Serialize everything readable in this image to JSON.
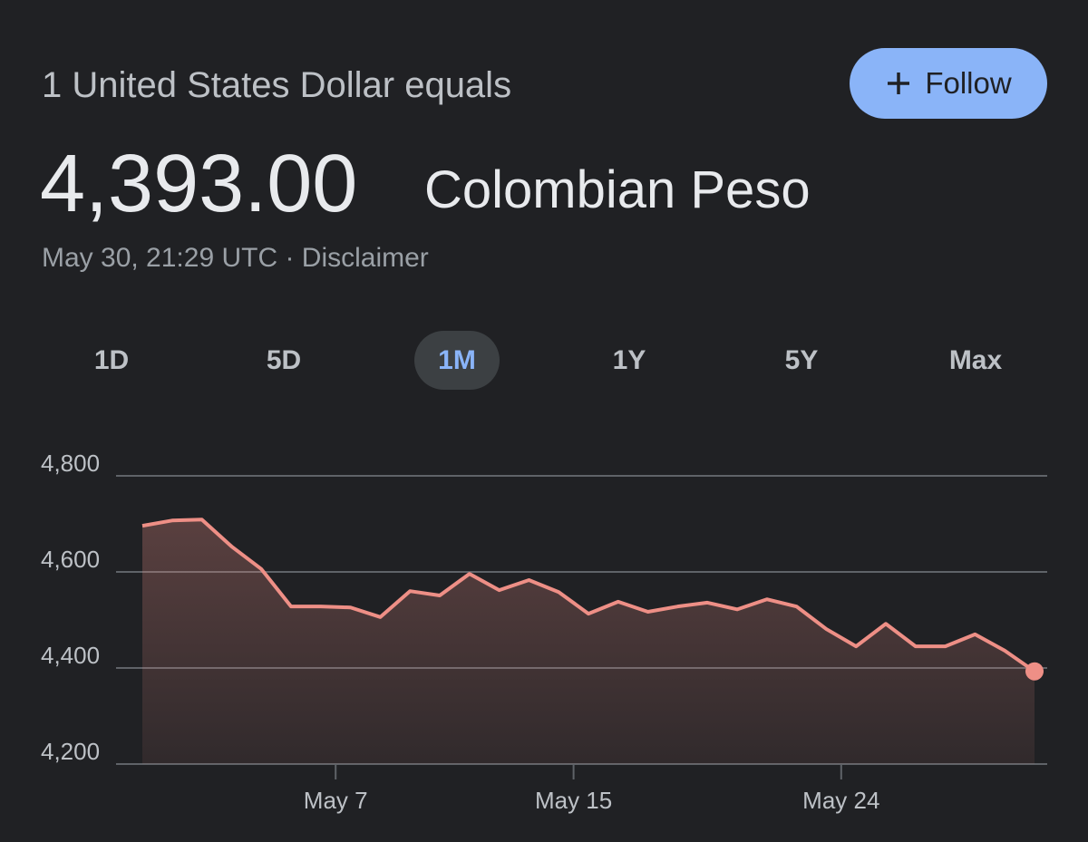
{
  "header": {
    "subtitle": "1 United States Dollar equals",
    "rate": "4,393.00",
    "currency": "Colombian Peso",
    "timestamp": "May 30, 21:29 UTC · Disclaimer",
    "follow": "Follow"
  },
  "tabs": [
    "1D",
    "5D",
    "1M",
    "1Y",
    "5Y",
    "Max"
  ],
  "chart_data": {
    "type": "line",
    "color": "#ee8f86",
    "x": [
      0.5,
      1.5,
      2.5,
      3.5,
      4.5,
      5.5,
      6.5,
      7.5,
      8.5,
      9.5,
      10.5,
      11.5,
      12.5,
      13.5,
      14.5,
      15.5,
      16.5,
      17.5,
      18.5,
      19.5,
      20.5,
      21.5,
      22.5,
      23.5,
      24.5,
      25.5,
      26.5,
      27.5,
      28.5,
      29.5,
      30.5
    ],
    "values": [
      4696,
      4707,
      4709,
      4653,
      4606,
      4528,
      4528,
      4526,
      4506,
      4560,
      4551,
      4596,
      4562,
      4583,
      4558,
      4513,
      4538,
      4517,
      4528,
      4536,
      4522,
      4543,
      4528,
      4481,
      4445,
      4492,
      4445,
      4445,
      4470,
      4436,
      4393
    ],
    "xlim": [
      0.5,
      30.5
    ],
    "xticks": [
      {
        "value": 7,
        "label": "May 7"
      },
      {
        "value": 15,
        "label": "May 15"
      },
      {
        "value": 24,
        "label": "May 24"
      }
    ],
    "ylim": [
      4200,
      4800
    ],
    "yticks": [
      {
        "value": 4200,
        "label": "4,200"
      },
      {
        "value": 4400,
        "label": "4,400"
      },
      {
        "value": 4600,
        "label": "4,600"
      },
      {
        "value": 4800,
        "label": "4,800"
      }
    ],
    "grid": true
  }
}
